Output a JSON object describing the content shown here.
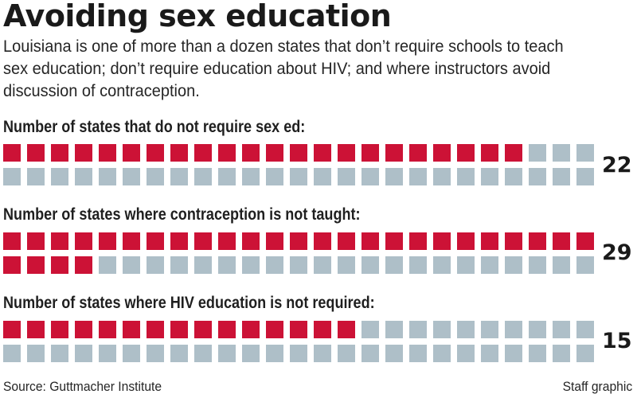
{
  "header": {
    "title": "Avoiding sex education",
    "subtitle": "Louisiana is one of more than a dozen states that don’t require schools to teach sex education; don’t require education about HIV; and where instructors avoid discussion of contraception."
  },
  "colors": {
    "highlight": "#cc1236",
    "base": "#aebfc8",
    "text": "#1f1f1f"
  },
  "sections": [
    {
      "label": "Number of states that do not require sex ed:",
      "value": "22"
    },
    {
      "label": "Number of states where contraception is not taught:",
      "value": "29"
    },
    {
      "label": "Number of states where HIV education is not required:",
      "value": "15"
    }
  ],
  "footer": {
    "source": "Source: Guttmacher Institute",
    "credit": "Staff graphic"
  },
  "chart_data": {
    "type": "waffle",
    "title": "Avoiding sex education",
    "subtitle": "Louisiana is one of more than a dozen states that don’t require schools to teach sex education; don’t require education about HIV; and where instructors avoid discussion of contraception.",
    "total_units": 50,
    "unit": "state",
    "grid": {
      "rows": 2,
      "columns": 25
    },
    "categories": [
      "Number of states that do not require sex ed",
      "Number of states where contraception is not taught",
      "Number of states where HIV education is not required"
    ],
    "values": [
      22,
      29,
      15
    ],
    "colors": {
      "counted": "#cc1236",
      "remaining": "#aebfc8"
    },
    "source": "Source: Guttmacher Institute",
    "credit": "Staff graphic"
  }
}
